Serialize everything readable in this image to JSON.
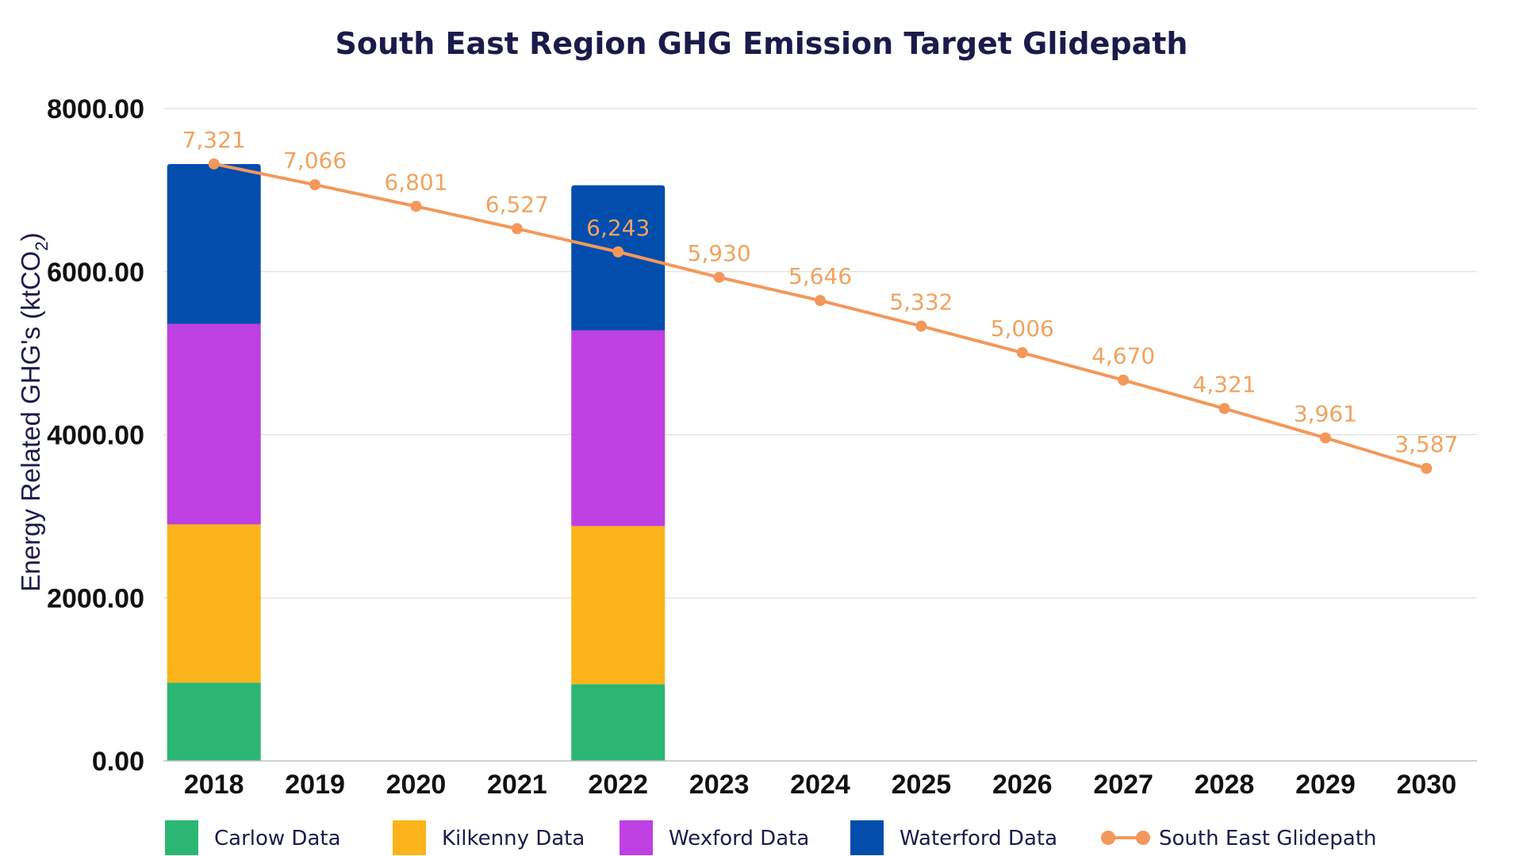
{
  "chart_data": {
    "type": "bar",
    "title": "South East Region GHG Emission Target Glidepath",
    "ylabel": "Energy Related GHG's (ktCO",
    "ylabel_subscript": "2",
    "ylabel_end": ")",
    "xlabel": "",
    "ylim": [
      0,
      8000
    ],
    "y_ticks": [
      "0.00",
      "2000.00",
      "4000.00",
      "6000.00",
      "8000.00"
    ],
    "y_tick_values": [
      0,
      2000,
      4000,
      6000,
      8000
    ],
    "grid": true,
    "legend_position": "bottom",
    "categories": [
      "2018",
      "2019",
      "2020",
      "2021",
      "2022",
      "2023",
      "2024",
      "2025",
      "2026",
      "2027",
      "2028",
      "2029",
      "2030"
    ],
    "stacked": true,
    "series": [
      {
        "name": "Carlow Data",
        "type": "bar",
        "color": "#2bb673",
        "values": [
          960,
          null,
          null,
          null,
          940,
          null,
          null,
          null,
          null,
          null,
          null,
          null,
          null
        ]
      },
      {
        "name": "Kilkenny Data",
        "type": "bar",
        "color": "#fbb41a",
        "values": [
          1940,
          null,
          null,
          null,
          1940,
          null,
          null,
          null,
          null,
          null,
          null,
          null,
          null
        ]
      },
      {
        "name": "Wexford Data",
        "type": "bar",
        "color": "#bf40e3",
        "values": [
          2460,
          null,
          null,
          null,
          2400,
          null,
          null,
          null,
          null,
          null,
          null,
          null,
          null
        ]
      },
      {
        "name": "Waterford Data",
        "type": "bar",
        "color": "#034dad",
        "values": [
          1960,
          null,
          null,
          null,
          1780,
          null,
          null,
          null,
          null,
          null,
          null,
          null,
          null
        ]
      },
      {
        "name": "South East Glidepath",
        "type": "line",
        "color": "#f3985a",
        "values": [
          7321,
          7066,
          6801,
          6527,
          6243,
          5930,
          5646,
          5332,
          5006,
          4670,
          4321,
          3961,
          3587
        ],
        "labels": [
          "7,321",
          "7,066",
          "6,801",
          "6,527",
          "6,243",
          "5,930",
          "5,646",
          "5,332",
          "5,006",
          "4,670",
          "4,321",
          "3,961",
          "3,587"
        ]
      }
    ]
  }
}
